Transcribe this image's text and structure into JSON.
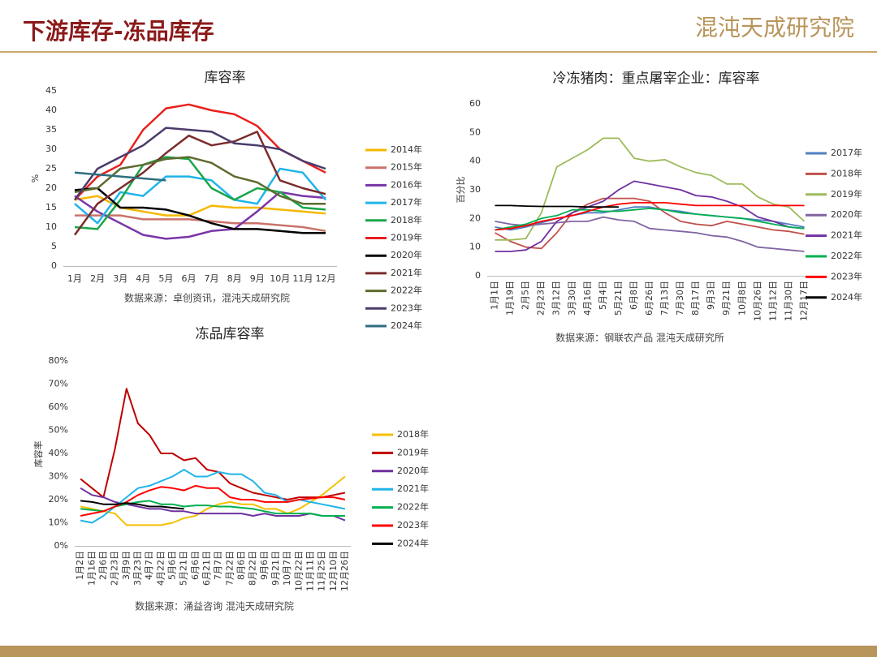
{
  "header": {
    "title": "下游库存-冻品库存",
    "logo": "混沌天成研究院"
  },
  "chart_data": [
    {
      "type": "line",
      "title": "库容率",
      "ylabel": "%",
      "source": "数据来源：卓创资讯，混沌天成研究院",
      "categories": [
        "1月",
        "2月",
        "3月",
        "4月",
        "5月",
        "6月",
        "7月",
        "8月",
        "9月",
        "10月",
        "11月",
        "12月"
      ],
      "ylim": [
        0,
        45
      ],
      "yticks": [
        0,
        5,
        10,
        15,
        20,
        25,
        30,
        35,
        40,
        45
      ],
      "series": [
        {
          "name": "2014年",
          "color": "#f5b800",
          "values": [
            17,
            18,
            15,
            14,
            13,
            13,
            15.5,
            15,
            15,
            14.5,
            14,
            13.5
          ]
        },
        {
          "name": "2015年",
          "color": "#c9736a",
          "values": [
            13,
            13,
            13,
            12,
            12,
            12,
            11.5,
            11,
            11,
            10.5,
            10,
            9
          ]
        },
        {
          "name": "2016年",
          "color": "#7a35a8",
          "values": [
            18,
            14,
            11,
            8,
            7,
            7.5,
            9,
            9.5,
            14,
            19,
            18,
            17.5
          ]
        },
        {
          "name": "2017年",
          "color": "#1fb5e8",
          "values": [
            16,
            11,
            19,
            18,
            23,
            23,
            22,
            17,
            16,
            25,
            24,
            17
          ]
        },
        {
          "name": "2018年",
          "color": "#1aa64a",
          "values": [
            10,
            9.5,
            17,
            26,
            28,
            27.5,
            20,
            17,
            20,
            19,
            15,
            14.5
          ]
        },
        {
          "name": "2019年",
          "color": "#e8201c",
          "values": [
            17,
            23,
            26,
            35,
            40.5,
            41.5,
            40,
            39,
            36,
            30,
            27,
            24
          ]
        },
        {
          "name": "2020年",
          "color": "#000000",
          "values": [
            19.5,
            20,
            15,
            15,
            14.5,
            13,
            11,
            9.5,
            9.5,
            9,
            8.5,
            8.5
          ]
        },
        {
          "name": "2021年",
          "color": "#7b2c2c",
          "values": [
            8,
            16,
            20,
            24,
            29,
            33.5,
            31,
            32,
            34.5,
            22,
            20,
            18.5
          ]
        },
        {
          "name": "2022年",
          "color": "#5d6b2e",
          "values": [
            19,
            20,
            25,
            26,
            27.5,
            28,
            26.5,
            23,
            21.5,
            18,
            16,
            16
          ]
        },
        {
          "name": "2023年",
          "color": "#4b3b6b",
          "values": [
            17,
            25,
            28,
            31,
            35.5,
            35,
            34.5,
            31.5,
            31,
            30,
            27,
            25
          ]
        },
        {
          "name": "2024年",
          "color": "#2e6e80",
          "values": [
            24,
            23.5,
            23,
            22.5,
            22,
            null,
            null,
            null,
            null,
            null,
            null,
            null
          ]
        }
      ]
    },
    {
      "type": "line",
      "title": "冷冻猪肉：重点屠宰企业：库容率",
      "ylabel": "百分比",
      "source": "数据来源：钢联农产品 混沌天成研究所",
      "categories": [
        "1月1日",
        "1月19日",
        "2月5日",
        "2月23日",
        "3月12日",
        "3月30日",
        "4月16日",
        "5月4日",
        "5月21日",
        "6月8日",
        "6月26日",
        "7月13日",
        "7月30日",
        "8月17日",
        "9月3日",
        "9月21日",
        "10月8日",
        "10月26日",
        "11月12日",
        "11月30日",
        "12月17日"
      ],
      "ylim": [
        0,
        60
      ],
      "yticks": [
        0,
        10,
        20,
        30,
        40,
        50,
        60
      ],
      "series": [
        {
          "name": "2017年",
          "color": "#4f7fbf",
          "values": [
            17,
            16,
            17,
            18.5,
            20,
            21,
            22,
            22,
            23,
            24,
            24,
            23,
            22.5,
            21.5,
            21,
            20.5,
            20,
            19.5,
            19,
            18,
            17
          ]
        },
        {
          "name": "2018年",
          "color": "#c0504d",
          "values": [
            15,
            12,
            10,
            9.5,
            15,
            22,
            25,
            27,
            27,
            27,
            26,
            22,
            19,
            18,
            17.5,
            19,
            18,
            17,
            16,
            15.5,
            14.5
          ]
        },
        {
          "name": "2019年",
          "color": "#9bbb59",
          "values": [
            12.5,
            12.5,
            13,
            22,
            38,
            41,
            44,
            48,
            48,
            41,
            40,
            40.5,
            38,
            36,
            35,
            32,
            32,
            27.5,
            25,
            24,
            19
          ]
        },
        {
          "name": "2020年",
          "color": "#8064a2",
          "values": [
            19,
            18,
            17.5,
            18,
            18.5,
            19,
            19,
            20.5,
            19.5,
            19,
            16.5,
            16,
            15.5,
            15,
            14,
            13.5,
            12,
            10,
            9.5,
            9,
            8.5
          ]
        },
        {
          "name": "2021年",
          "color": "#7030a0",
          "values": [
            8.5,
            8.5,
            9,
            12,
            19,
            22,
            24,
            26,
            30,
            33,
            32,
            31,
            30,
            28,
            27.5,
            26,
            24,
            20.5,
            19,
            17,
            16.5
          ]
        },
        {
          "name": "2022年",
          "color": "#00b050",
          "values": [
            16,
            17,
            18,
            20,
            21,
            23,
            23,
            22.5,
            22.5,
            23,
            23.5,
            23,
            22,
            21.5,
            21,
            20.5,
            20,
            19,
            18,
            17,
            16.5
          ]
        },
        {
          "name": "2023年",
          "color": "#ff0000",
          "values": [
            16,
            16.5,
            17.5,
            19,
            20,
            21,
            22.5,
            24,
            25,
            25.5,
            25.5,
            25.5,
            25,
            24.5,
            24.5,
            24.5,
            24.5,
            24.5,
            24.5,
            24.5,
            24.5
          ]
        },
        {
          "name": "2024年",
          "color": "#000000",
          "values": [
            24.5,
            24.5,
            24.3,
            24.2,
            24.2,
            24.2,
            24,
            24,
            24,
            null,
            null,
            null,
            null,
            null,
            null,
            null,
            null,
            null,
            null,
            null,
            null
          ]
        }
      ]
    },
    {
      "type": "line",
      "title": "冻品库容率",
      "ylabel": "库容率",
      "source": "数据来源：涌益咨询 混沌天成研究院",
      "categories": [
        "1月2日",
        "1月16日",
        "2月6日",
        "2月23日",
        "3月9日",
        "3月23日",
        "4月7日",
        "4月22日",
        "5月6日",
        "5月21日",
        "6月6日",
        "6月21日",
        "7月7日",
        "7月22日",
        "8月6日",
        "8月22日",
        "9月6日",
        "9月21日",
        "10月7日",
        "10月22日",
        "11月11日",
        "11月25日",
        "12月10日",
        "12月26日"
      ],
      "ylim": [
        0,
        80
      ],
      "yticks": [
        {
          "value": 0,
          "label": "0%"
        },
        {
          "value": 10,
          "label": "10%"
        },
        {
          "value": 20,
          "label": "20%"
        },
        {
          "value": 30,
          "label": "30%"
        },
        {
          "value": 40,
          "label": "40%"
        },
        {
          "value": 50,
          "label": "50%"
        },
        {
          "value": 60,
          "label": "60%"
        },
        {
          "value": 70,
          "label": "70%"
        },
        {
          "value": 80,
          "label": "80%"
        }
      ],
      "series": [
        {
          "name": "2018年",
          "color": "#f5c000",
          "values": [
            17,
            16,
            15,
            14,
            9,
            9,
            9,
            9,
            10,
            12,
            13,
            16,
            18,
            19,
            18,
            18,
            16,
            16,
            14,
            16,
            19,
            22,
            26,
            30
          ]
        },
        {
          "name": "2019年",
          "color": "#c00000",
          "values": [
            29,
            25,
            21,
            42,
            68,
            53,
            48,
            40,
            40,
            37,
            38,
            33,
            32,
            27,
            25,
            23,
            22,
            21,
            20,
            21,
            21,
            21,
            22,
            23
          ]
        },
        {
          "name": "2020年",
          "color": "#7030a0",
          "values": [
            25,
            22,
            21,
            19,
            18,
            17,
            16,
            16,
            15,
            15,
            14,
            14,
            14,
            14,
            14,
            13,
            14,
            13,
            13,
            13,
            14,
            13,
            13,
            11
          ]
        },
        {
          "name": "2021年",
          "color": "#1fb5e8",
          "values": [
            11,
            10,
            13,
            17,
            21,
            25,
            26,
            28,
            30,
            33,
            30,
            30,
            32,
            31,
            31,
            28,
            23,
            22,
            19,
            20,
            19,
            18,
            17,
            16
          ]
        },
        {
          "name": "2022年",
          "color": "#00b050",
          "values": [
            16,
            15.5,
            15,
            17,
            18,
            19,
            19.5,
            18,
            18,
            17,
            17.5,
            17.5,
            17,
            17,
            16.5,
            16,
            15,
            14,
            14,
            14,
            14,
            13,
            13,
            13
          ]
        },
        {
          "name": "2023年",
          "color": "#ff0000",
          "values": [
            13,
            14,
            15,
            17,
            19,
            22,
            24,
            25.5,
            25,
            24,
            26,
            25,
            25,
            21,
            20,
            20,
            19,
            19,
            19,
            20,
            20.5,
            21,
            21,
            20
          ]
        },
        {
          "name": "2024年",
          "color": "#000000",
          "values": [
            19.5,
            19,
            18,
            18,
            18.5,
            18,
            17,
            17,
            16.5,
            16,
            null,
            null,
            null,
            null,
            null,
            null,
            null,
            null,
            null,
            null,
            null,
            null,
            null,
            null
          ]
        }
      ]
    }
  ]
}
